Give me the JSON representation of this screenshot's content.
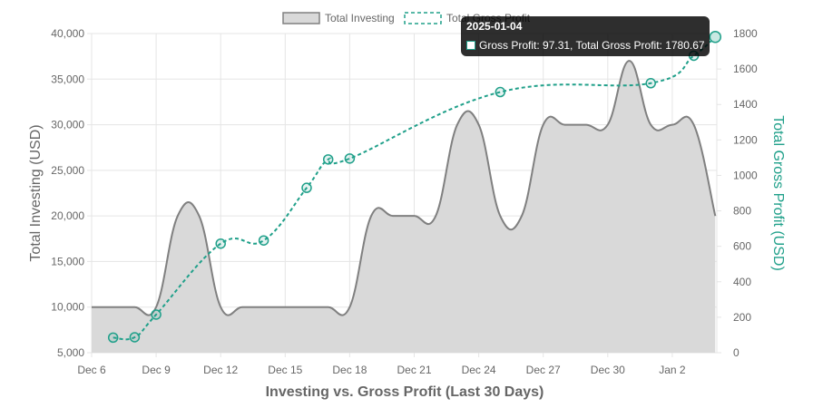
{
  "chart_data": {
    "type": "line",
    "title": "",
    "xlabel": "Investing vs. Gross Profit (Last 30 Days)",
    "ylabel_left": "Total Investing (USD)",
    "ylabel_right": "Total Gross Profit (USD)",
    "x_ticks": [
      "Dec 6",
      "Dec 9",
      "Dec 12",
      "Dec 15",
      "Dec 18",
      "Dec 21",
      "Dec 24",
      "Dec 27",
      "Dec 30",
      "Jan 2"
    ],
    "x_range": [
      "2024-12-06",
      "2025-01-04"
    ],
    "y_left_ticks": [
      "5,000",
      "10,000",
      "15,000",
      "20,000",
      "25,000",
      "30,000",
      "35,000",
      "40,000"
    ],
    "y_left_range": [
      5000,
      40000
    ],
    "y_right_ticks": [
      "0",
      "200",
      "400",
      "600",
      "800",
      "1000",
      "1200",
      "1400",
      "1600",
      "1800"
    ],
    "y_right_range": [
      0,
      1800
    ],
    "grid": true,
    "legend_position": "top",
    "colors": {
      "investing_fill": "#d9d9d9",
      "investing_line": "#808080",
      "profit_line": "#20a08a",
      "axis_text": "#666666",
      "grid": "#e5e5e5"
    },
    "series": [
      {
        "name": "Total Investing",
        "axis": "left",
        "type": "area",
        "x": [
          "2024-12-06",
          "2024-12-07",
          "2024-12-08",
          "2024-12-09",
          "2024-12-10",
          "2024-12-11",
          "2024-12-12",
          "2024-12-13",
          "2024-12-14",
          "2024-12-15",
          "2024-12-16",
          "2024-12-17",
          "2024-12-18",
          "2024-12-19",
          "2024-12-20",
          "2024-12-21",
          "2024-12-22",
          "2024-12-23",
          "2024-12-24",
          "2024-12-25",
          "2024-12-26",
          "2024-12-27",
          "2024-12-28",
          "2024-12-29",
          "2024-12-30",
          "2024-12-31",
          "2025-01-01",
          "2025-01-02",
          "2025-01-03",
          "2025-01-04"
        ],
        "values": [
          10000,
          10000,
          10000,
          10000,
          20000,
          20000,
          10000,
          10000,
          10000,
          10000,
          10000,
          10000,
          10000,
          20000,
          20000,
          20000,
          20000,
          30000,
          30000,
          20000,
          20000,
          30000,
          30000,
          30000,
          30000,
          37000,
          30000,
          30000,
          30000,
          20000
        ]
      },
      {
        "name": "Total Gross Profit",
        "axis": "right",
        "type": "line",
        "x": [
          "2024-12-07",
          "2024-12-08",
          "2024-12-09",
          "2024-12-12",
          "2024-12-14",
          "2024-12-16",
          "2024-12-17",
          "2024-12-18",
          "2024-12-25",
          "2025-01-01",
          "2025-01-03",
          "2025-01-04"
        ],
        "values": [
          85,
          87,
          215,
          615,
          633,
          930,
          1090,
          1095,
          1470,
          1520,
          1675,
          1780.67
        ]
      }
    ]
  },
  "legend": {
    "items": [
      {
        "label": "Total Investing"
      },
      {
        "label": "Total Gross Profit"
      }
    ]
  },
  "tooltip": {
    "title": "2025-01-04",
    "body": "Gross Profit: 97.31, Total Gross Profit: 1780.67"
  }
}
